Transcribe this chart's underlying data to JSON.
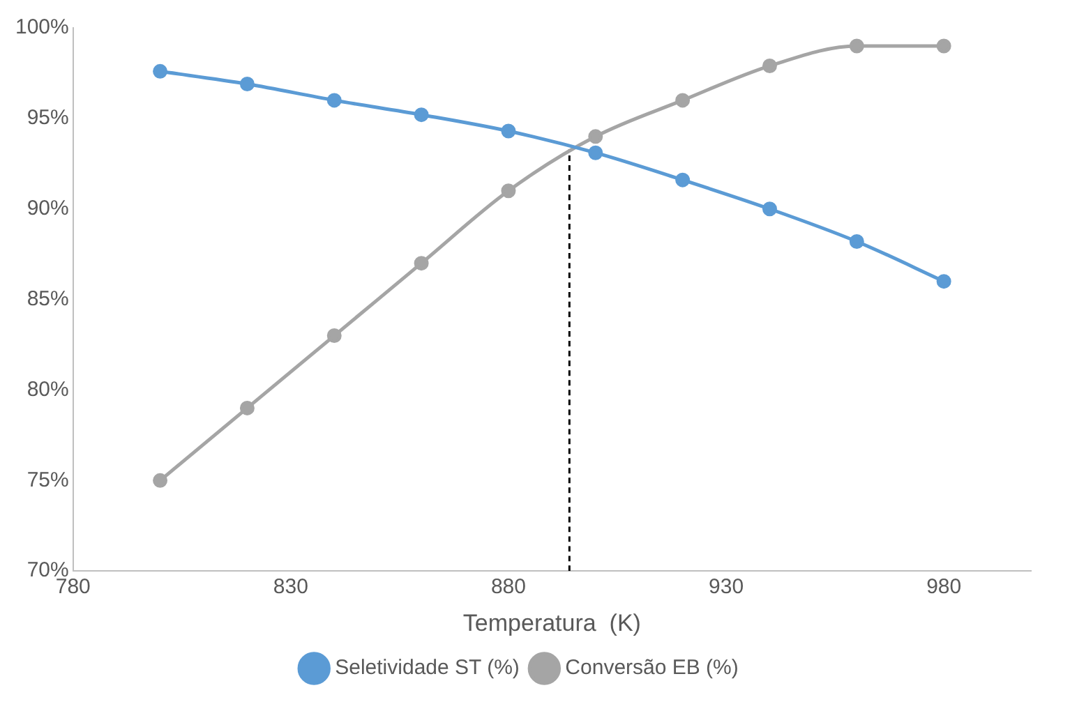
{
  "chart_data": {
    "type": "line",
    "xlabel": "Temperatura  (K)",
    "xlim": [
      780,
      1000
    ],
    "xticks": [
      780,
      830,
      880,
      930,
      980
    ],
    "ylim": [
      70,
      100
    ],
    "yticks": [
      {
        "value": 70,
        "label": "70%"
      },
      {
        "value": 75,
        "label": "75%"
      },
      {
        "value": 80,
        "label": "80%"
      },
      {
        "value": 85,
        "label": "85%"
      },
      {
        "value": 90,
        "label": "90%"
      },
      {
        "value": 95,
        "label": "95%"
      },
      {
        "value": 100,
        "label": "100%"
      }
    ],
    "grid": false,
    "legend": "bottom",
    "marker": "circle",
    "line_style": "solid",
    "series": [
      {
        "name": "Seletividade ST (%)",
        "color": "#5b9bd5",
        "x": [
          800,
          820,
          840,
          860,
          880,
          900,
          920,
          940,
          960,
          980
        ],
        "values": [
          97.6,
          96.9,
          96.0,
          95.2,
          94.3,
          93.1,
          91.6,
          90.0,
          88.2,
          86.0
        ]
      },
      {
        "name": "Conversão EB (%)",
        "color": "#a5a5a5",
        "x": [
          800,
          820,
          840,
          860,
          880,
          900,
          920,
          940,
          960,
          980
        ],
        "values": [
          75.0,
          79.0,
          83.0,
          87.0,
          91.0,
          94.0,
          96.0,
          97.9,
          99.0,
          99.0
        ]
      },
      {
        "color": "#000000",
        "x": [
          894,
          894
        ],
        "values": [
          70,
          93.3
        ],
        "marker": "none",
        "line_style": "dashed"
      }
    ]
  }
}
